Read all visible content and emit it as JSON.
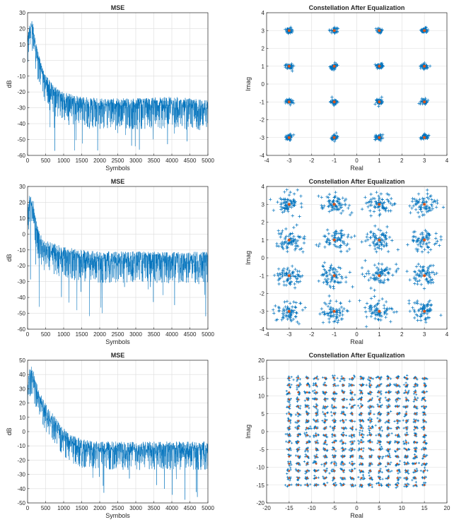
{
  "colors": {
    "series": "#0072BD",
    "ideal": "#D95319",
    "axis": "#262626",
    "grid": "#dcdcdc"
  },
  "chart_data": [
    {
      "type": "line",
      "title": "MSE",
      "xlabel": "Symbols",
      "ylabel": "dB",
      "xlim": [
        0,
        5000
      ],
      "ylim": [
        -60,
        30
      ],
      "xticks": [
        0,
        500,
        1000,
        1500,
        2000,
        2500,
        3000,
        3500,
        4000,
        4500,
        5000
      ],
      "yticks": [
        -60,
        -50,
        -40,
        -30,
        -20,
        -10,
        0,
        10,
        20,
        30
      ],
      "grid": true,
      "series": [
        {
          "values_sampled": [
            {
              "x": 0,
              "y": 10
            },
            {
              "x": 50,
              "y": 18
            },
            {
              "x": 100,
              "y": 20
            },
            {
              "x": 150,
              "y": 19
            },
            {
              "x": 200,
              "y": 12
            },
            {
              "x": 300,
              "y": 0
            },
            {
              "x": 400,
              "y": -8
            },
            {
              "x": 500,
              "y": -14
            },
            {
              "x": 700,
              "y": -20
            },
            {
              "x": 1000,
              "y": -25
            },
            {
              "x": 1500,
              "y": -28
            },
            {
              "x": 2000,
              "y": -29
            },
            {
              "x": 3000,
              "y": -29
            },
            {
              "x": 4000,
              "y": -28
            },
            {
              "x": 5000,
              "y": -30
            }
          ],
          "noise_down": 15,
          "noise_up": 5,
          "min_spike": -58
        }
      ]
    },
    {
      "type": "scatter",
      "title": "Constellation After Equalization",
      "xlabel": "Real",
      "ylabel": "Imag",
      "xlim": [
        -4,
        4
      ],
      "ylim": [
        -4,
        4
      ],
      "xticks": [
        -4,
        -3,
        -2,
        -1,
        0,
        1,
        2,
        3,
        4
      ],
      "yticks": [
        -4,
        -3,
        -2,
        -1,
        0,
        1,
        2,
        3,
        4
      ],
      "grid": true,
      "ideal_points": [
        -3,
        -1,
        1,
        3
      ],
      "spread": 0.08
    },
    {
      "type": "line",
      "title": "MSE",
      "xlabel": "Symbols",
      "ylabel": "dB",
      "xlim": [
        0,
        5000
      ],
      "ylim": [
        -60,
        30
      ],
      "xticks": [
        0,
        500,
        1000,
        1500,
        2000,
        2500,
        3000,
        3500,
        4000,
        4500,
        5000
      ],
      "yticks": [
        -60,
        -50,
        -40,
        -30,
        -20,
        -10,
        0,
        10,
        20,
        30
      ],
      "grid": true,
      "series": [
        {
          "values_sampled": [
            {
              "x": 0,
              "y": 12
            },
            {
              "x": 50,
              "y": 20
            },
            {
              "x": 100,
              "y": 21
            },
            {
              "x": 150,
              "y": 18
            },
            {
              "x": 200,
              "y": 8
            },
            {
              "x": 300,
              "y": -3
            },
            {
              "x": 500,
              "y": -10
            },
            {
              "x": 1000,
              "y": -14
            },
            {
              "x": 1500,
              "y": -16
            },
            {
              "x": 2000,
              "y": -17
            },
            {
              "x": 3000,
              "y": -17
            },
            {
              "x": 4000,
              "y": -17
            },
            {
              "x": 5000,
              "y": -17
            }
          ],
          "noise_down": 14,
          "noise_up": 6,
          "min_spike": -52
        }
      ]
    },
    {
      "type": "scatter",
      "title": "Constellation After Equalization",
      "xlabel": "Real",
      "ylabel": "Imag",
      "xlim": [
        -4,
        4
      ],
      "ylim": [
        -4,
        4
      ],
      "xticks": [
        -4,
        -3,
        -2,
        -1,
        0,
        1,
        2,
        3,
        4
      ],
      "yticks": [
        -4,
        -3,
        -2,
        -1,
        0,
        1,
        2,
        3,
        4
      ],
      "grid": true,
      "ideal_points": [
        -3,
        -1,
        1,
        3
      ],
      "spread": 0.3
    },
    {
      "type": "line",
      "title": "MSE",
      "xlabel": "Symbols",
      "ylabel": "dB",
      "xlim": [
        0,
        5000
      ],
      "ylim": [
        -50,
        50
      ],
      "xticks": [
        0,
        500,
        1000,
        1500,
        2000,
        2500,
        3000,
        3500,
        4000,
        4500,
        5000
      ],
      "yticks": [
        -50,
        -40,
        -30,
        -20,
        -10,
        0,
        10,
        20,
        30,
        40,
        50
      ],
      "grid": true,
      "series": [
        {
          "values_sampled": [
            {
              "x": 0,
              "y": 28
            },
            {
              "x": 50,
              "y": 38
            },
            {
              "x": 100,
              "y": 40
            },
            {
              "x": 150,
              "y": 38
            },
            {
              "x": 250,
              "y": 28
            },
            {
              "x": 400,
              "y": 18
            },
            {
              "x": 600,
              "y": 10
            },
            {
              "x": 800,
              "y": 3
            },
            {
              "x": 1000,
              "y": -3
            },
            {
              "x": 1200,
              "y": -8
            },
            {
              "x": 1500,
              "y": -11
            },
            {
              "x": 2000,
              "y": -13
            },
            {
              "x": 3000,
              "y": -13
            },
            {
              "x": 4000,
              "y": -13
            },
            {
              "x": 5000,
              "y": -13
            }
          ],
          "noise_down": 14,
          "noise_up": 6,
          "min_spike": -48
        }
      ]
    },
    {
      "type": "scatter",
      "title": "Constellation After Equalization",
      "xlabel": "Real",
      "ylabel": "Imag",
      "xlim": [
        -20,
        20
      ],
      "ylim": [
        -20,
        20
      ],
      "xticks": [
        -20,
        -15,
        -10,
        -5,
        0,
        5,
        10,
        15,
        20
      ],
      "yticks": [
        -20,
        -15,
        -10,
        -5,
        0,
        5,
        10,
        15,
        20
      ],
      "grid": true,
      "ideal_points": [
        -15,
        -13,
        -11,
        -9,
        -7,
        -5,
        -3,
        -1,
        1,
        3,
        5,
        7,
        9,
        11,
        13,
        15
      ],
      "spread": 0.3
    }
  ]
}
